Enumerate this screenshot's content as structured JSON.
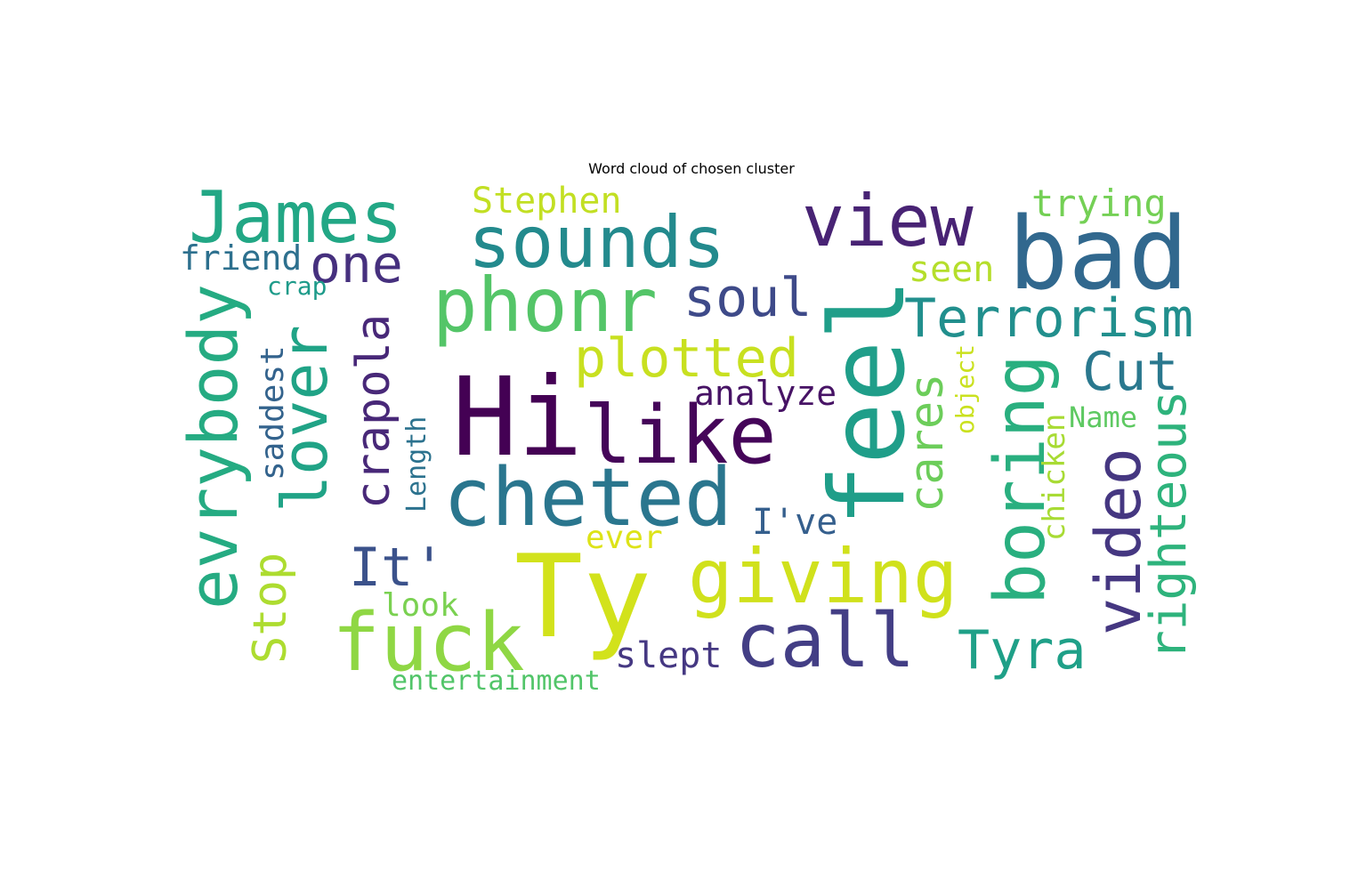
{
  "title": "Word cloud of chosen cluster",
  "words": [
    {
      "text": "Hi",
      "color": "#440154"
    },
    {
      "text": "Ty",
      "color": "#d2e21b"
    },
    {
      "text": "bad",
      "color": "#31688e"
    },
    {
      "text": "feel",
      "color": "#1f9e89"
    },
    {
      "text": "like",
      "color": "#450559"
    },
    {
      "text": "cheted",
      "color": "#2a768e"
    },
    {
      "text": "sounds",
      "color": "#238a8d"
    },
    {
      "text": "James",
      "color": "#22a785"
    },
    {
      "text": "phonr",
      "color": "#54c568"
    },
    {
      "text": "view",
      "color": "#482374"
    },
    {
      "text": "call",
      "color": "#433e85"
    },
    {
      "text": "fuck",
      "color": "#8fd744"
    },
    {
      "text": "giving",
      "color": "#d0e11c"
    },
    {
      "text": "evrybody",
      "color": "#25ab82"
    },
    {
      "text": "boring",
      "color": "#29af7f"
    },
    {
      "text": "video",
      "color": "#453781"
    },
    {
      "text": "lover",
      "color": "#20a386"
    },
    {
      "text": "Terrorism",
      "color": "#218f8d"
    },
    {
      "text": "plotted",
      "color": "#c8e020"
    },
    {
      "text": "righteous",
      "color": "#2eb37c"
    },
    {
      "text": "soul",
      "color": "#3e4a89"
    },
    {
      "text": "crapola",
      "color": "#482878"
    },
    {
      "text": "one",
      "color": "#46307e"
    },
    {
      "text": "Tyra",
      "color": "#1fa088"
    },
    {
      "text": "cares",
      "color": "#6ccd5a"
    },
    {
      "text": "Cut",
      "color": "#2a788e"
    },
    {
      "text": "It'",
      "color": "#3b528b"
    },
    {
      "text": "Stop",
      "color": "#addc30"
    },
    {
      "text": "Stephen",
      "color": "#c2df23"
    },
    {
      "text": "trying",
      "color": "#74d055"
    },
    {
      "text": "analyze",
      "color": "#471365"
    },
    {
      "text": "friend",
      "color": "#2d708e"
    },
    {
      "text": "saddest",
      "color": "#33638d"
    },
    {
      "text": "seen",
      "color": "#b5de2b"
    },
    {
      "text": "slept",
      "color": "#453882"
    },
    {
      "text": "I've",
      "color": "#355f8d"
    },
    {
      "text": "look",
      "color": "#7ad151"
    },
    {
      "text": "chicken",
      "color": "#a8db34"
    },
    {
      "text": "ever",
      "color": "#dde318"
    },
    {
      "text": "Name",
      "color": "#5ec962"
    },
    {
      "text": "entertainment",
      "color": "#52c569"
    },
    {
      "text": "Length",
      "color": "#2c728e"
    },
    {
      "text": "crap",
      "color": "#1e9b8a"
    },
    {
      "text": "object",
      "color": "#cae11f"
    }
  ]
}
